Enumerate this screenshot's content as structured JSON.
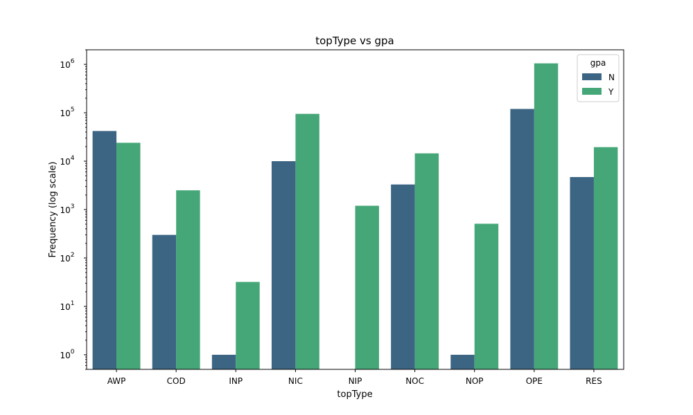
{
  "chart_data": {
    "type": "bar",
    "title": "topType vs gpa",
    "xlabel": "topType",
    "ylabel": "Frequency (log scale)",
    "yscale": "log",
    "ylim": [
      0.5,
      2000000
    ],
    "categories": [
      "AWP",
      "COD",
      "INP",
      "NIC",
      "NIP",
      "NOC",
      "NOP",
      "OPE",
      "RES"
    ],
    "series": [
      {
        "name": "N",
        "color": "#3b6583",
        "values": [
          42000,
          300,
          1,
          10000,
          null,
          3300,
          1,
          120000,
          4700
        ]
      },
      {
        "name": "Y",
        "color": "#45a778",
        "values": [
          24000,
          2500,
          32,
          95000,
          1200,
          14500,
          510,
          1050000,
          19500
        ]
      }
    ],
    "yticks": [
      {
        "value": 1,
        "mantissa": "10",
        "exp": "0"
      },
      {
        "value": 10,
        "mantissa": "10",
        "exp": "1"
      },
      {
        "value": 100,
        "mantissa": "10",
        "exp": "2"
      },
      {
        "value": 1000,
        "mantissa": "10",
        "exp": "3"
      },
      {
        "value": 10000,
        "mantissa": "10",
        "exp": "4"
      },
      {
        "value": 100000,
        "mantissa": "10",
        "exp": "5"
      },
      {
        "value": 1000000,
        "mantissa": "10",
        "exp": "6"
      }
    ],
    "legend": {
      "title": "gpa",
      "placement": "top-right"
    },
    "grid": false
  }
}
